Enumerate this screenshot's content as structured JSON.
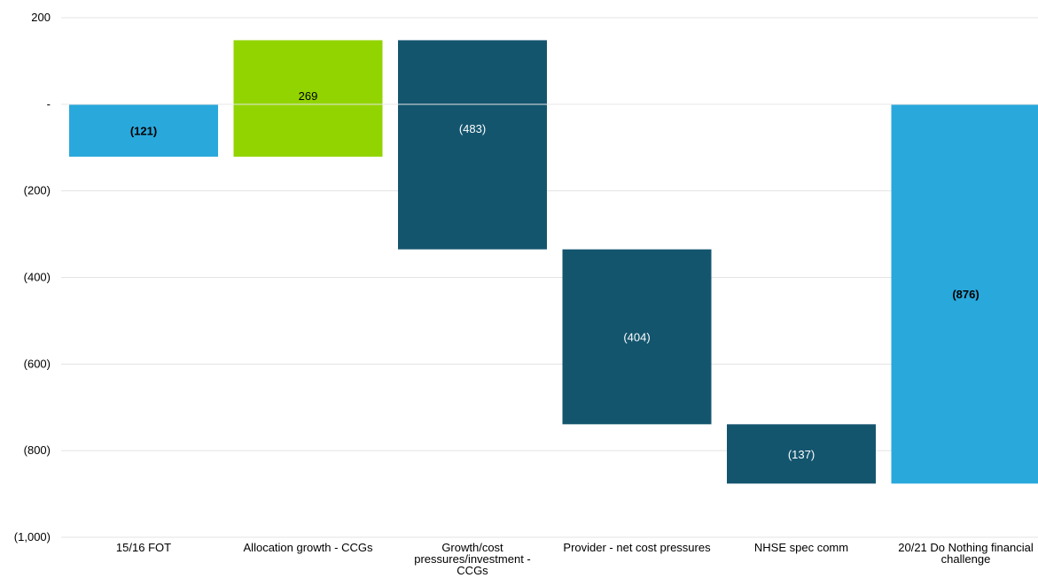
{
  "chart_data": {
    "type": "bar",
    "subtype": "waterfall",
    "title": "",
    "xlabel": "",
    "ylabel": "",
    "ylim": [
      -1000,
      200
    ],
    "yticks": [
      200,
      0,
      -200,
      -400,
      -600,
      -800,
      -1000
    ],
    "ytick_labels": [
      "200",
      "-",
      "(200)",
      "(400)",
      "(600)",
      "(800)",
      "(1,000)"
    ],
    "grid": true,
    "categories": [
      [
        "15/16 FOT"
      ],
      [
        "Allocation growth - CCGs"
      ],
      [
        "Growth/cost",
        "pressures/investment -",
        "CCGs"
      ],
      [
        "Provider - net cost pressures"
      ],
      [
        "NHSE spec comm"
      ],
      [
        "20/21 Do Nothing financial",
        "challenge"
      ]
    ],
    "bars": [
      {
        "start": 0,
        "end": -121,
        "value": -121,
        "label": "(121)",
        "bold": true,
        "color": "#29a8dc",
        "label_color": "#000000"
      },
      {
        "start": -121,
        "end": 148,
        "value": 269,
        "label": "269",
        "bold": false,
        "color": "#92d400",
        "label_color": "#000000"
      },
      {
        "start": 148,
        "end": -335,
        "value": -483,
        "label": "(483)",
        "bold": false,
        "color": "#14556e",
        "label_color": "#ffffff"
      },
      {
        "start": -335,
        "end": -739,
        "value": -404,
        "label": "(404)",
        "bold": false,
        "color": "#14556e",
        "label_color": "#ffffff"
      },
      {
        "start": -739,
        "end": -876,
        "value": -137,
        "label": "(137)",
        "bold": false,
        "color": "#14556e",
        "label_color": "#ffffff"
      },
      {
        "start": 0,
        "end": -876,
        "value": -876,
        "label": "(876)",
        "bold": true,
        "color": "#29a8dc",
        "label_color": "#000000"
      }
    ]
  }
}
